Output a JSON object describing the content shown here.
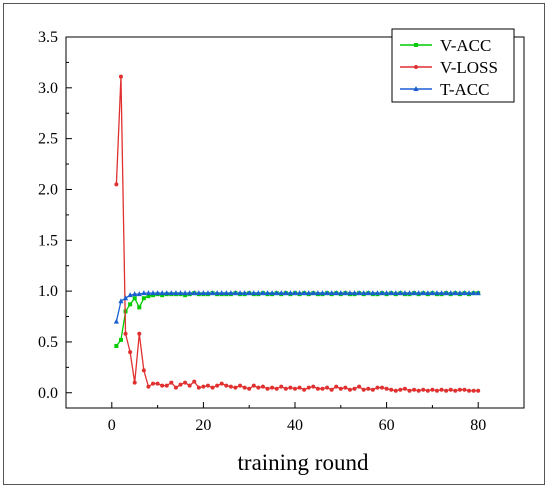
{
  "chart_data": {
    "type": "line",
    "title": "",
    "xlabel": "training round",
    "ylabel": "",
    "xlim": [
      -10,
      90
    ],
    "ylim": [
      -0.15,
      3.5
    ],
    "x_ticks": [
      0,
      20,
      40,
      60,
      80
    ],
    "y_ticks": [
      0.0,
      0.5,
      1.0,
      1.5,
      2.0,
      2.5,
      3.0,
      3.5
    ],
    "x_tick_labels": [
      "0",
      "20",
      "40",
      "60",
      "80"
    ],
    "y_tick_labels": [
      "0.0",
      "0.5",
      "1.0",
      "1.5",
      "2.0",
      "2.5",
      "3.0",
      "3.5"
    ],
    "legend_position": "top-right",
    "grid": false,
    "series": [
      {
        "name": "V-ACC",
        "color": "#00cc00",
        "marker": "square",
        "x": [
          1,
          2,
          3,
          4,
          5,
          6,
          7,
          8,
          9,
          10,
          11,
          12,
          13,
          14,
          15,
          16,
          17,
          18,
          19,
          20,
          21,
          22,
          23,
          24,
          25,
          26,
          27,
          28,
          29,
          30,
          31,
          32,
          33,
          34,
          35,
          36,
          37,
          38,
          39,
          40,
          41,
          42,
          43,
          44,
          45,
          46,
          47,
          48,
          49,
          50,
          51,
          52,
          53,
          54,
          55,
          56,
          57,
          58,
          59,
          60,
          61,
          62,
          63,
          64,
          65,
          66,
          67,
          68,
          69,
          70,
          71,
          72,
          73,
          74,
          75,
          76,
          77,
          78,
          79,
          80
        ],
        "values": [
          0.46,
          0.52,
          0.8,
          0.87,
          0.93,
          0.84,
          0.93,
          0.95,
          0.96,
          0.97,
          0.96,
          0.97,
          0.97,
          0.97,
          0.97,
          0.96,
          0.97,
          0.98,
          0.97,
          0.97,
          0.97,
          0.98,
          0.97,
          0.97,
          0.97,
          0.97,
          0.98,
          0.97,
          0.97,
          0.98,
          0.97,
          0.97,
          0.98,
          0.97,
          0.97,
          0.98,
          0.97,
          0.98,
          0.97,
          0.98,
          0.97,
          0.98,
          0.97,
          0.98,
          0.97,
          0.97,
          0.98,
          0.97,
          0.98,
          0.97,
          0.98,
          0.97,
          0.97,
          0.98,
          0.97,
          0.98,
          0.97,
          0.97,
          0.98,
          0.97,
          0.98,
          0.97,
          0.98,
          0.97,
          0.97,
          0.98,
          0.97,
          0.98,
          0.97,
          0.98,
          0.97,
          0.97,
          0.98,
          0.97,
          0.98,
          0.97,
          0.98,
          0.97,
          0.98,
          0.98
        ]
      },
      {
        "name": "V-LOSS",
        "color": "#e03030",
        "marker": "circle",
        "x": [
          1,
          2,
          3,
          4,
          5,
          6,
          7,
          8,
          9,
          10,
          11,
          12,
          13,
          14,
          15,
          16,
          17,
          18,
          19,
          20,
          21,
          22,
          23,
          24,
          25,
          26,
          27,
          28,
          29,
          30,
          31,
          32,
          33,
          34,
          35,
          36,
          37,
          38,
          39,
          40,
          41,
          42,
          43,
          44,
          45,
          46,
          47,
          48,
          49,
          50,
          51,
          52,
          53,
          54,
          55,
          56,
          57,
          58,
          59,
          60,
          61,
          62,
          63,
          64,
          65,
          66,
          67,
          68,
          69,
          70,
          71,
          72,
          73,
          74,
          75,
          76,
          77,
          78,
          79,
          80
        ],
        "values": [
          2.05,
          3.11,
          0.58,
          0.4,
          0.1,
          0.58,
          0.22,
          0.06,
          0.09,
          0.09,
          0.07,
          0.07,
          0.1,
          0.05,
          0.08,
          0.1,
          0.07,
          0.11,
          0.05,
          0.06,
          0.07,
          0.05,
          0.07,
          0.09,
          0.07,
          0.06,
          0.05,
          0.07,
          0.05,
          0.04,
          0.07,
          0.05,
          0.06,
          0.04,
          0.05,
          0.04,
          0.06,
          0.04,
          0.05,
          0.04,
          0.05,
          0.03,
          0.05,
          0.06,
          0.04,
          0.04,
          0.05,
          0.03,
          0.06,
          0.04,
          0.05,
          0.03,
          0.04,
          0.06,
          0.03,
          0.04,
          0.03,
          0.05,
          0.05,
          0.04,
          0.03,
          0.02,
          0.03,
          0.04,
          0.02,
          0.03,
          0.02,
          0.03,
          0.02,
          0.03,
          0.02,
          0.03,
          0.02,
          0.03,
          0.02,
          0.03,
          0.03,
          0.02,
          0.02,
          0.02
        ]
      },
      {
        "name": "T-ACC",
        "color": "#1a5fd0",
        "marker": "triangle",
        "x": [
          1,
          2,
          3,
          4,
          5,
          6,
          7,
          8,
          9,
          10,
          11,
          12,
          13,
          14,
          15,
          16,
          17,
          18,
          19,
          20,
          21,
          22,
          23,
          24,
          25,
          26,
          27,
          28,
          29,
          30,
          31,
          32,
          33,
          34,
          35,
          36,
          37,
          38,
          39,
          40,
          41,
          42,
          43,
          44,
          45,
          46,
          47,
          48,
          49,
          50,
          51,
          52,
          53,
          54,
          55,
          56,
          57,
          58,
          59,
          60,
          61,
          62,
          63,
          64,
          65,
          66,
          67,
          68,
          69,
          70,
          71,
          72,
          73,
          74,
          75,
          76,
          77,
          78,
          79,
          80
        ],
        "values": [
          0.7,
          0.9,
          0.93,
          0.96,
          0.97,
          0.97,
          0.98,
          0.98,
          0.98,
          0.98,
          0.98,
          0.98,
          0.98,
          0.98,
          0.98,
          0.98,
          0.98,
          0.98,
          0.98,
          0.98,
          0.98,
          0.98,
          0.98,
          0.98,
          0.98,
          0.98,
          0.98,
          0.98,
          0.98,
          0.98,
          0.98,
          0.98,
          0.98,
          0.98,
          0.98,
          0.98,
          0.98,
          0.98,
          0.98,
          0.98,
          0.98,
          0.98,
          0.98,
          0.98,
          0.98,
          0.98,
          0.98,
          0.98,
          0.98,
          0.98,
          0.98,
          0.98,
          0.98,
          0.98,
          0.98,
          0.98,
          0.98,
          0.98,
          0.98,
          0.98,
          0.98,
          0.98,
          0.98,
          0.98,
          0.98,
          0.98,
          0.98,
          0.98,
          0.98,
          0.98,
          0.98,
          0.98,
          0.98,
          0.98,
          0.98,
          0.98,
          0.98,
          0.98,
          0.98,
          0.98
        ]
      }
    ]
  }
}
